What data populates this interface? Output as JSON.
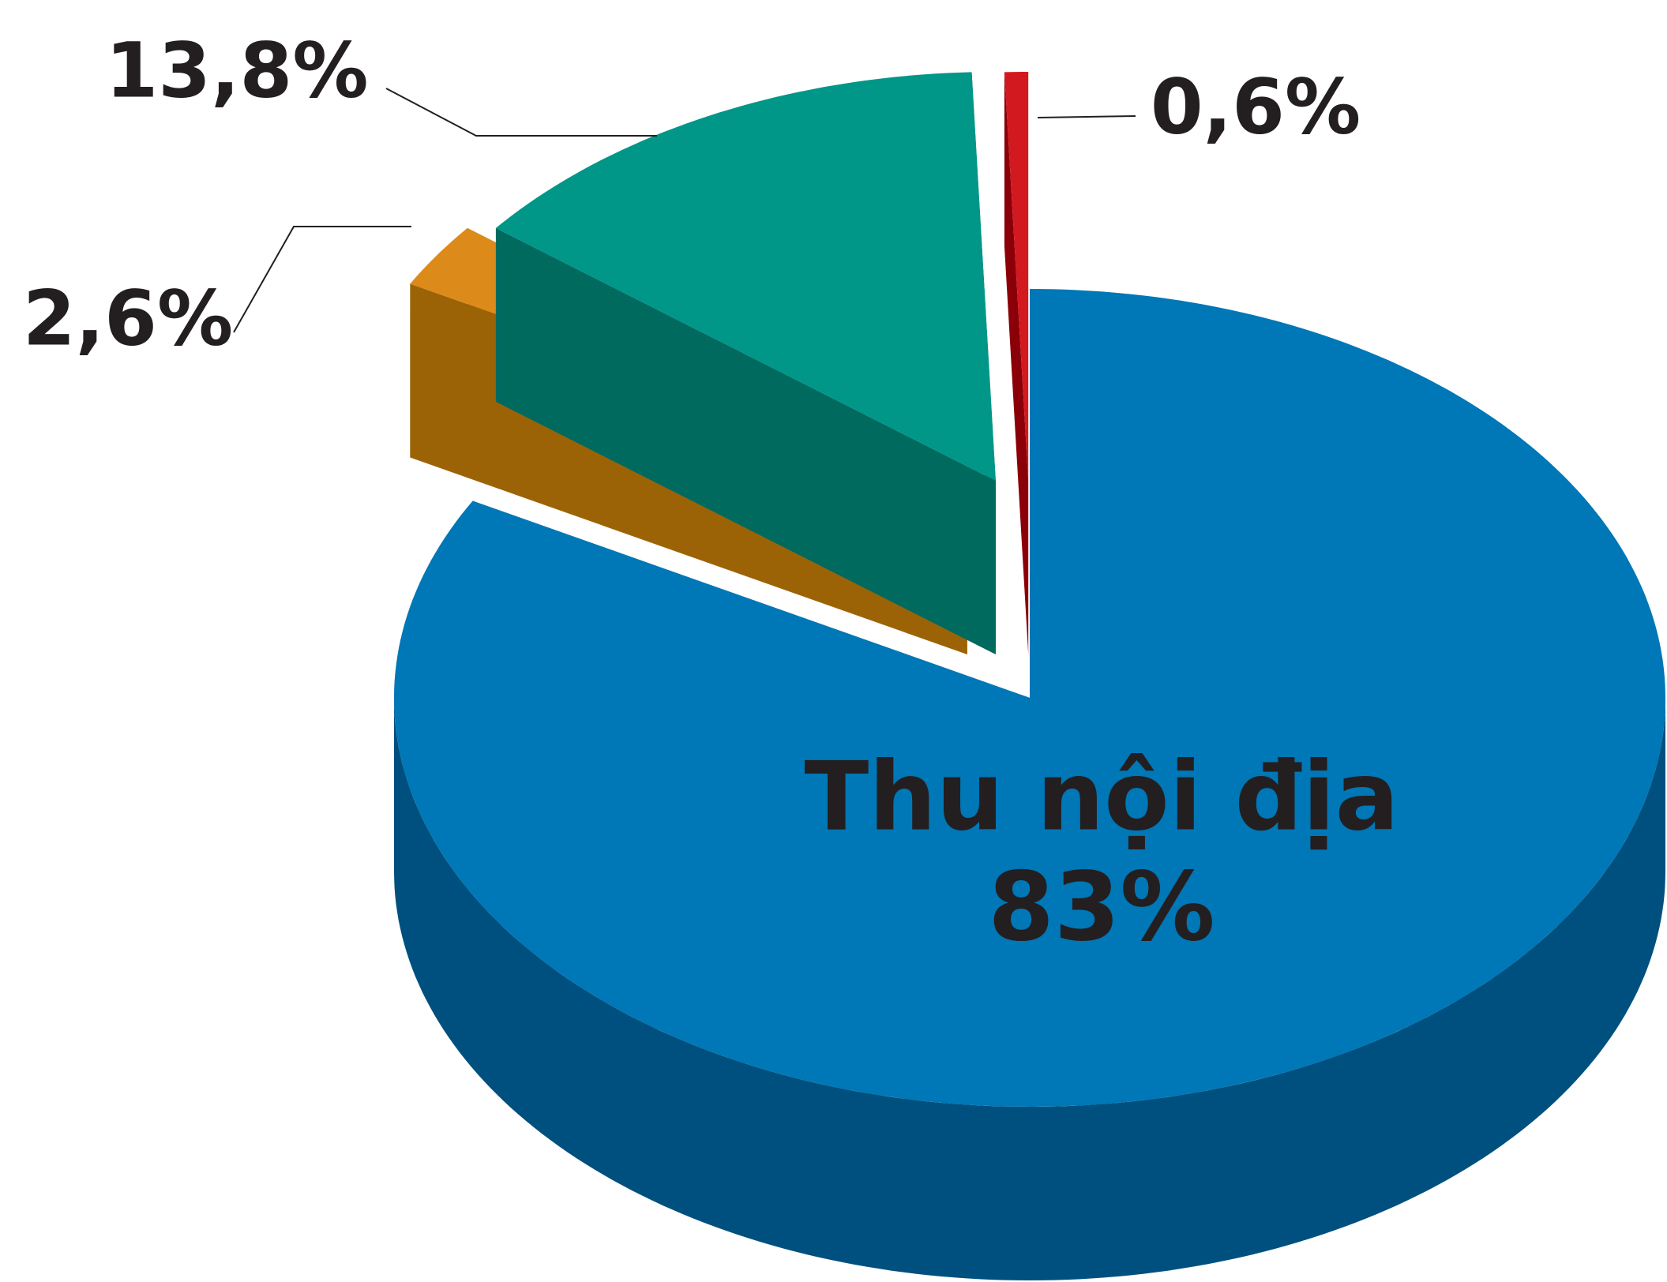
{
  "chart_data": {
    "type": "pie3d",
    "categories": [
      "Thu nội địa",
      null,
      null,
      null
    ],
    "values": [
      83,
      2.6,
      13.8,
      0.6
    ],
    "value_labels": [
      "83%",
      "2,6%",
      "13,8%",
      "0,6%"
    ],
    "colors": [
      "#0077b6",
      "#dc8a1a",
      "#009688",
      "#d31920"
    ],
    "side_colors": [
      "#00507f",
      "#9c6306",
      "#006a5f",
      "#8b0008"
    ]
  }
}
